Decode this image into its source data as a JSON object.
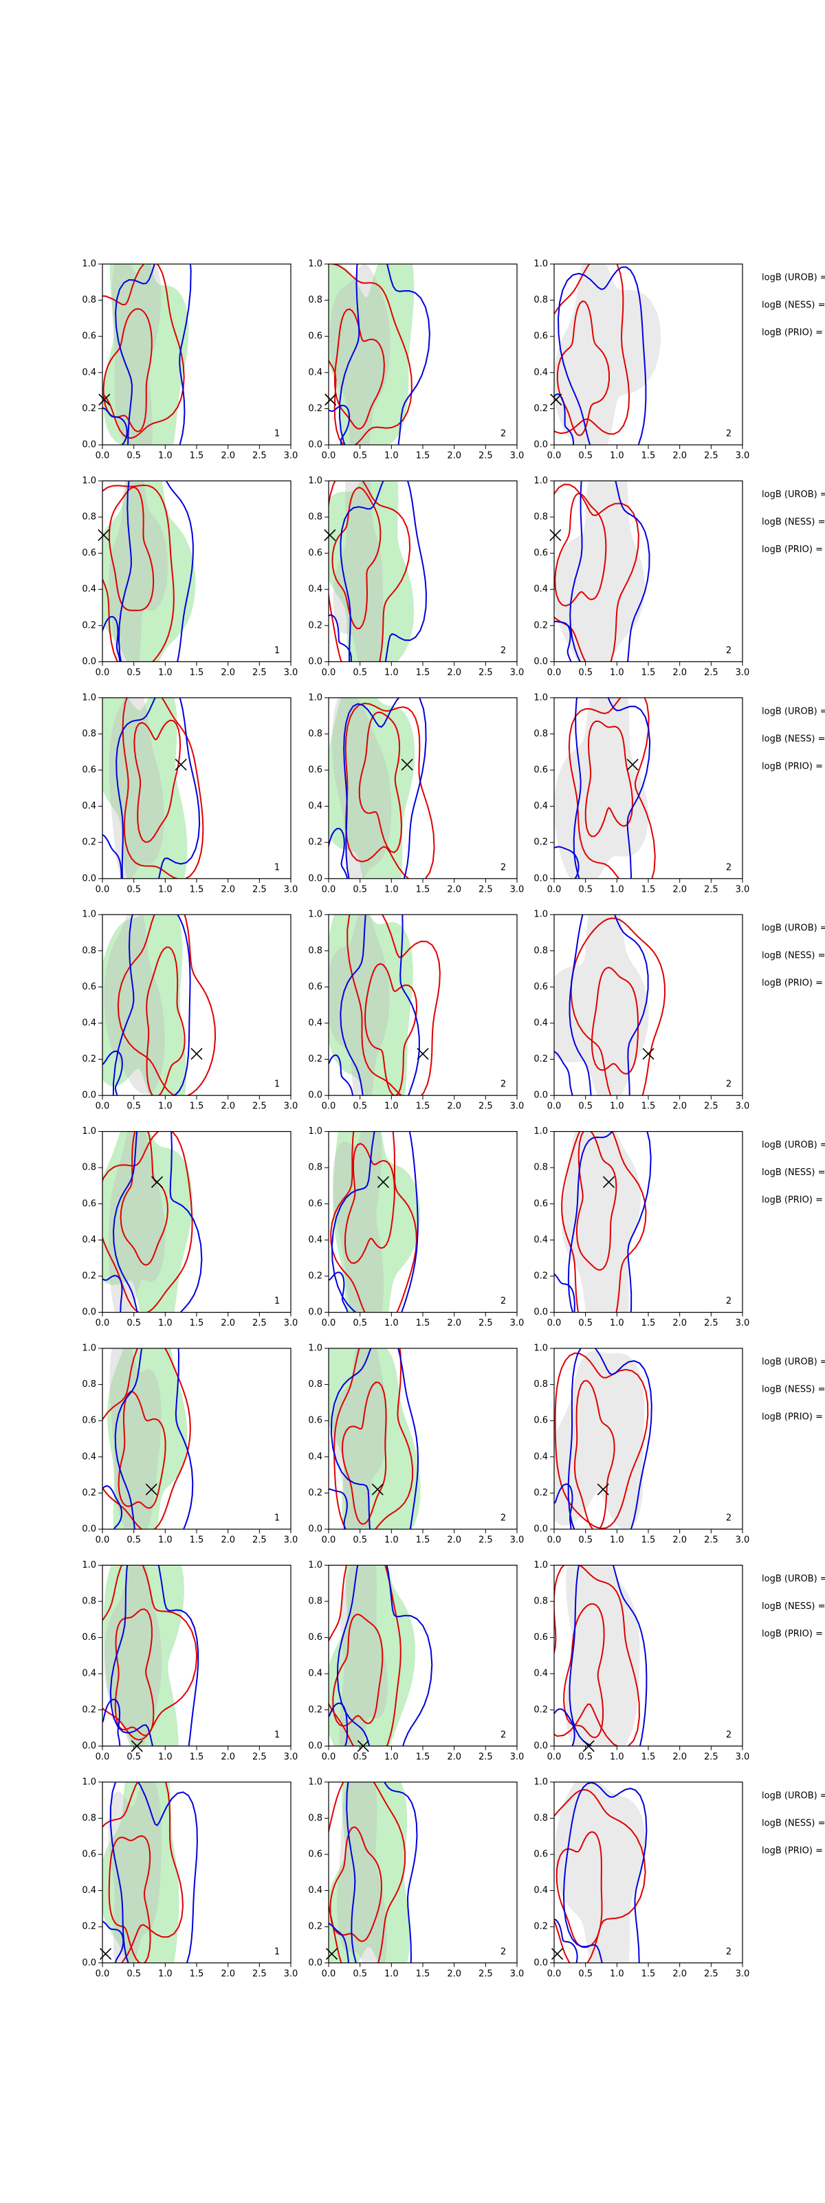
{
  "chart_data": {
    "type": "contour",
    "xlim": [
      0,
      3
    ],
    "ylim": [
      0,
      1
    ],
    "xticks": [
      {
        "value": 0,
        "label": "0.0"
      },
      {
        "value": 0.5,
        "label": "0.5"
      },
      {
        "value": 1,
        "label": "1.0"
      },
      {
        "value": 1.5,
        "label": "1.5"
      },
      {
        "value": 2,
        "label": "2.0"
      },
      {
        "value": 2.5,
        "label": "2.5"
      },
      {
        "value": 3,
        "label": "3.0"
      }
    ],
    "yticks": [
      {
        "value": 0,
        "label": "0.0"
      },
      {
        "value": 0.2,
        "label": "0.2"
      },
      {
        "value": 0.4,
        "label": "0.4"
      },
      {
        "value": 0.6,
        "label": "0.6"
      },
      {
        "value": 0.8,
        "label": "0.8"
      },
      {
        "value": 1,
        "label": "1.0"
      }
    ],
    "rows": [
      {
        "marker": {
          "x": 0.03,
          "y": 0.25
        },
        "panel_labels": [
          "1",
          "2",
          "2"
        ],
        "side_labels": [
          "logB (UROB) =",
          "logB (NESS) =",
          "logB (PRIO) ="
        ]
      },
      {
        "marker": {
          "x": 0.02,
          "y": 0.7
        },
        "panel_labels": [
          "1",
          "2",
          "2"
        ],
        "side_labels": [
          "logB (UROB) =",
          "logB (NESS) =",
          "logB (PRIO) ="
        ]
      },
      {
        "marker": {
          "x": 1.25,
          "y": 0.63
        },
        "panel_labels": [
          "1",
          "2",
          "2"
        ],
        "side_labels": [
          "logB (UROB) =",
          "logB (NESS) =",
          "logB (PRIO) ="
        ]
      },
      {
        "marker": {
          "x": 1.5,
          "y": 0.23
        },
        "panel_labels": [
          "1",
          "2",
          "2"
        ],
        "side_labels": [
          "logB (UROB) =",
          "logB (NESS) =",
          "logB (PRIO) ="
        ]
      },
      {
        "marker": {
          "x": 0.87,
          "y": 0.72
        },
        "panel_labels": [
          "1",
          "2",
          "2"
        ],
        "side_labels": [
          "logB (UROB) =",
          "logB (NESS) =",
          "logB (PRIO) ="
        ]
      },
      {
        "marker": {
          "x": 0.78,
          "y": 0.22
        },
        "panel_labels": [
          "1",
          "2",
          "2"
        ],
        "side_labels": [
          "logB (UROB) =",
          "logB (NESS) =",
          "logB (PRIO) ="
        ]
      },
      {
        "marker": {
          "x": 0.55,
          "y": 0.0
        },
        "panel_labels": [
          "1",
          "2",
          "2"
        ],
        "side_labels": [
          "logB (UROB) =",
          "logB (NESS) =",
          "logB (PRIO) ="
        ]
      },
      {
        "marker": {
          "x": 0.05,
          "y": 0.05
        },
        "panel_labels": [
          "1",
          "2",
          "2"
        ],
        "side_labels": [
          "logB (UROB) =",
          "logB (NESS) =",
          "logB (PRIO) ="
        ]
      }
    ]
  }
}
